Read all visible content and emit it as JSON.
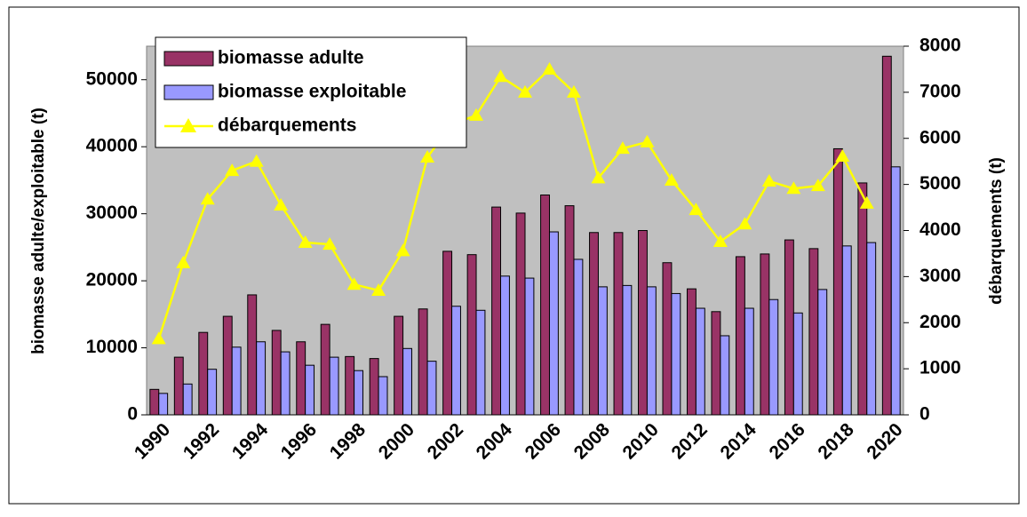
{
  "chart_data": {
    "type": "bar-line",
    "categories": [
      "1990",
      null,
      "1992",
      null,
      "1994",
      null,
      "1996",
      null,
      "1998",
      null,
      "2000",
      null,
      "2002",
      null,
      "2004",
      null,
      "2006",
      null,
      "2008",
      null,
      "2010",
      null,
      "2012",
      null,
      "2014",
      null,
      "2016",
      null,
      "2018",
      null,
      "2020"
    ],
    "y_label": "biomasse adulte/exploitable (t)",
    "y2_label": "débarquements (t)",
    "ylim": [
      0,
      55000
    ],
    "yticks": [
      0,
      10000,
      20000,
      30000,
      40000,
      50000
    ],
    "y2lim": [
      0,
      8000
    ],
    "y2ticks": [
      0,
      1000,
      2000,
      3000,
      4000,
      5000,
      6000,
      7000,
      8000
    ],
    "series": [
      {
        "name": "biomasse adulte",
        "type": "bar",
        "color": "#993366",
        "values": [
          3800,
          8600,
          12300,
          14700,
          17900,
          12600,
          10900,
          13500,
          8700,
          8400,
          14700,
          15800,
          24400,
          23900,
          31000,
          30100,
          32800,
          31200,
          27200,
          27200,
          27500,
          22700,
          18800,
          15400,
          23600,
          24000,
          26100,
          24800,
          39700,
          34600,
          53500
        ]
      },
      {
        "name": "biomasse exploitable",
        "type": "bar",
        "color": "#9999ff",
        "values": [
          3200,
          4600,
          6800,
          10100,
          10900,
          9400,
          7400,
          8600,
          6600,
          5700,
          9900,
          8000,
          16200,
          15600,
          20700,
          20400,
          27300,
          23200,
          19100,
          19300,
          19100,
          18100,
          15900,
          11800,
          15900,
          17200,
          15200,
          18700,
          25200,
          25700,
          37000
        ]
      },
      {
        "name": "débarquements",
        "type": "line",
        "axis": "y2",
        "color": "#ffff00",
        "values": [
          1650,
          3300,
          4680,
          5300,
          5500,
          4550,
          3740,
          3700,
          2830,
          2700,
          3560,
          5590,
          6300,
          6500,
          7340,
          7000,
          7500,
          7000,
          5140,
          5780,
          5920,
          5090,
          4450,
          3760,
          4140,
          5070,
          4910,
          4970,
          5610,
          4590,
          null
        ]
      }
    ],
    "plot_background": "#c0c0c0"
  }
}
